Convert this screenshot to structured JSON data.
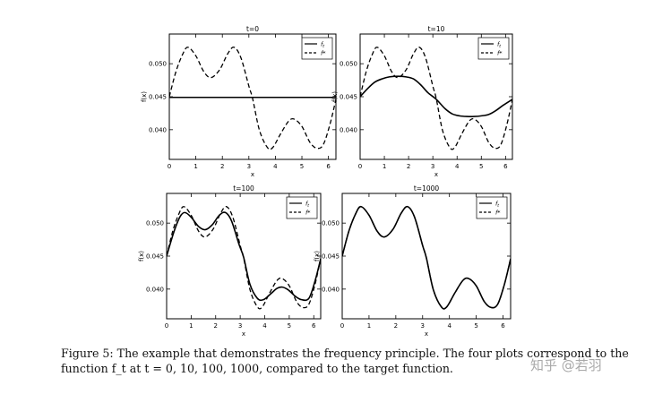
{
  "chart_data": [
    {
      "type": "line",
      "title": "t=0",
      "xlabel": "x",
      "ylabel": "f(x)",
      "xlim": [
        0,
        6.283
      ],
      "ylim": [
        0.0355,
        0.0545
      ],
      "xticks": [
        "0",
        "1",
        "2",
        "3",
        "4",
        "5",
        "6"
      ],
      "yticks": [
        "0.040",
        "0.045",
        "0.050"
      ],
      "legend": {
        "position": "top-right",
        "entries": [
          "f_t",
          "f*"
        ]
      },
      "series": [
        {
          "name": "f_t",
          "style": "solid",
          "x": [
            0,
            0.785,
            1.571,
            2.356,
            3.142,
            3.927,
            4.712,
            5.498,
            6.283
          ],
          "y": [
            0.0449,
            0.0449,
            0.0449,
            0.0449,
            0.0449,
            0.0449,
            0.0449,
            0.0449,
            0.0449
          ]
        },
        {
          "name": "f*",
          "style": "dashed",
          "x": [
            0,
            0.25,
            0.5,
            0.7,
            1.0,
            1.3,
            1.571,
            1.9,
            2.2,
            2.44,
            2.7,
            3.0,
            3.142,
            3.4,
            3.7,
            3.9,
            4.2,
            4.5,
            4.712,
            5.0,
            5.3,
            5.56,
            5.8,
            6.05,
            6.283
          ],
          "y": [
            0.045,
            0.0488,
            0.0514,
            0.0525,
            0.0512,
            0.0488,
            0.0479,
            0.0491,
            0.0515,
            0.0525,
            0.0509,
            0.0466,
            0.0447,
            0.0399,
            0.0373,
            0.0373,
            0.0394,
            0.0413,
            0.0416,
            0.0405,
            0.0381,
            0.0372,
            0.0377,
            0.0407,
            0.0446
          ]
        }
      ]
    },
    {
      "type": "line",
      "title": "t=10",
      "xlabel": "x",
      "ylabel": "f(x)",
      "xlim": [
        0,
        6.283
      ],
      "ylim": [
        0.0355,
        0.0545
      ],
      "xticks": [
        "0",
        "1",
        "2",
        "3",
        "4",
        "5",
        "6"
      ],
      "yticks": [
        "0.040",
        "0.045",
        "0.050"
      ],
      "legend": {
        "position": "top-right",
        "entries": [
          "f_t",
          "f*"
        ]
      },
      "series": [
        {
          "name": "f_t",
          "style": "solid",
          "x": [
            0,
            0.3,
            0.6,
            0.9,
            1.2,
            1.571,
            1.9,
            2.2,
            2.5,
            2.8,
            3.142,
            3.5,
            3.8,
            4.1,
            4.4,
            4.712,
            5.0,
            5.3,
            5.6,
            5.9,
            6.283
          ],
          "y": [
            0.045,
            0.0462,
            0.0472,
            0.0477,
            0.048,
            0.0481,
            0.048,
            0.0477,
            0.0468,
            0.0456,
            0.0446,
            0.0432,
            0.0424,
            0.0421,
            0.042,
            0.042,
            0.0421,
            0.0423,
            0.0429,
            0.0437,
            0.0446
          ]
        },
        {
          "name": "f*",
          "style": "dashed",
          "x": [
            0,
            0.25,
            0.5,
            0.7,
            1.0,
            1.3,
            1.571,
            1.9,
            2.2,
            2.44,
            2.7,
            3.0,
            3.142,
            3.4,
            3.7,
            3.9,
            4.2,
            4.5,
            4.712,
            5.0,
            5.3,
            5.56,
            5.8,
            6.05,
            6.283
          ],
          "y": [
            0.045,
            0.0488,
            0.0514,
            0.0525,
            0.0512,
            0.0488,
            0.0479,
            0.0491,
            0.0515,
            0.0525,
            0.0509,
            0.0466,
            0.0447,
            0.0399,
            0.0373,
            0.0373,
            0.0394,
            0.0413,
            0.0416,
            0.0405,
            0.0381,
            0.0372,
            0.0377,
            0.0407,
            0.0446
          ]
        }
      ]
    },
    {
      "type": "line",
      "title": "t=100",
      "xlabel": "x",
      "ylabel": "f(x)",
      "xlim": [
        0,
        6.283
      ],
      "ylim": [
        0.0355,
        0.0545
      ],
      "xticks": [
        "0",
        "1",
        "2",
        "3",
        "4",
        "5",
        "6"
      ],
      "yticks": [
        "0.040",
        "0.045",
        "0.050"
      ],
      "legend": {
        "position": "top-right",
        "entries": [
          "f_t",
          "f*"
        ]
      },
      "series": [
        {
          "name": "f_t",
          "style": "solid",
          "x": [
            0,
            0.3,
            0.55,
            0.75,
            1.0,
            1.3,
            1.571,
            1.85,
            2.15,
            2.4,
            2.65,
            2.95,
            3.142,
            3.4,
            3.7,
            3.95,
            4.25,
            4.5,
            4.712,
            4.95,
            5.25,
            5.5,
            5.8,
            6.05,
            6.283
          ],
          "y": [
            0.045,
            0.0487,
            0.051,
            0.0516,
            0.0509,
            0.0495,
            0.049,
            0.0497,
            0.0512,
            0.0516,
            0.0503,
            0.0468,
            0.0448,
            0.0407,
            0.0386,
            0.0384,
            0.0393,
            0.0401,
            0.0403,
            0.0399,
            0.0389,
            0.0384,
            0.0386,
            0.0412,
            0.0446
          ]
        },
        {
          "name": "f*",
          "style": "dashed",
          "x": [
            0,
            0.25,
            0.5,
            0.7,
            1.0,
            1.3,
            1.571,
            1.9,
            2.2,
            2.44,
            2.7,
            3.0,
            3.142,
            3.4,
            3.7,
            3.9,
            4.2,
            4.5,
            4.712,
            5.0,
            5.3,
            5.56,
            5.8,
            6.05,
            6.283
          ],
          "y": [
            0.045,
            0.0488,
            0.0514,
            0.0525,
            0.0512,
            0.0488,
            0.0479,
            0.0491,
            0.0515,
            0.0525,
            0.0509,
            0.0466,
            0.0447,
            0.0399,
            0.0373,
            0.0373,
            0.0394,
            0.0413,
            0.0416,
            0.0405,
            0.0381,
            0.0372,
            0.0377,
            0.0407,
            0.0446
          ]
        }
      ]
    },
    {
      "type": "line",
      "title": "t=1000",
      "xlabel": "x",
      "ylabel": "f(x)",
      "xlim": [
        0,
        6.283
      ],
      "ylim": [
        0.0355,
        0.0545
      ],
      "xticks": [
        "0",
        "1",
        "2",
        "3",
        "4",
        "5",
        "6"
      ],
      "yticks": [
        "0.040",
        "0.045",
        "0.050"
      ],
      "legend": {
        "position": "top-right",
        "entries": [
          "f_t",
          "f*"
        ]
      },
      "series": [
        {
          "name": "f_t",
          "style": "solid",
          "x": [
            0,
            0.25,
            0.5,
            0.7,
            1.0,
            1.3,
            1.571,
            1.9,
            2.2,
            2.44,
            2.7,
            3.0,
            3.142,
            3.4,
            3.7,
            3.9,
            4.2,
            4.5,
            4.712,
            5.0,
            5.3,
            5.56,
            5.8,
            6.05,
            6.283
          ],
          "y": [
            0.045,
            0.0488,
            0.0514,
            0.0525,
            0.0512,
            0.0488,
            0.0479,
            0.0491,
            0.0515,
            0.0525,
            0.0509,
            0.0466,
            0.0447,
            0.0399,
            0.0373,
            0.0373,
            0.0394,
            0.0413,
            0.0416,
            0.0405,
            0.0381,
            0.0372,
            0.0377,
            0.0407,
            0.0446
          ]
        },
        {
          "name": "f*",
          "style": "dashed",
          "x": [
            0,
            0.25,
            0.5,
            0.7,
            1.0,
            1.3,
            1.571,
            1.9,
            2.2,
            2.44,
            2.7,
            3.0,
            3.142,
            3.4,
            3.7,
            3.9,
            4.2,
            4.5,
            4.712,
            5.0,
            5.3,
            5.56,
            5.8,
            6.05,
            6.283
          ],
          "y": [
            0.045,
            0.0488,
            0.0514,
            0.0525,
            0.0512,
            0.0488,
            0.0479,
            0.0491,
            0.0515,
            0.0525,
            0.0509,
            0.0466,
            0.0447,
            0.0399,
            0.0373,
            0.0373,
            0.0394,
            0.0413,
            0.0416,
            0.0405,
            0.0381,
            0.0372,
            0.0377,
            0.0407,
            0.0446
          ]
        }
      ]
    }
  ],
  "caption": {
    "line1": "Figure 5: The example that demonstrates the frequency principle. The four plots correspond to the",
    "line2": "function f_t at t = 0, 10, 100, 1000, compared to the target function."
  },
  "watermark": "知乎 @若羽"
}
